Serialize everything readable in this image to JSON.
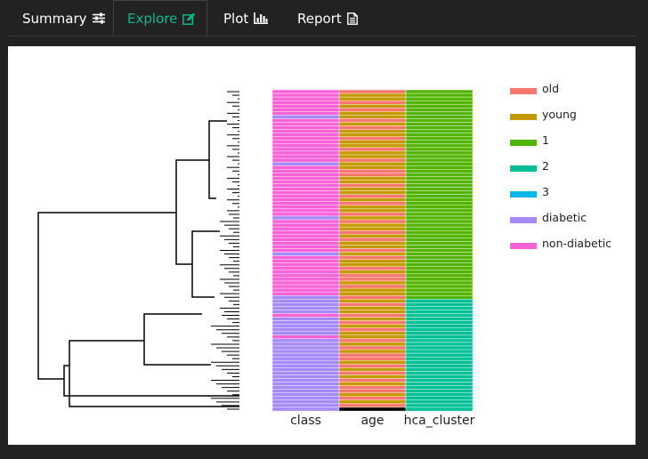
{
  "tabs": [
    {
      "label": "Summary",
      "icon": "sliders-icon",
      "active": false
    },
    {
      "label": "Explore",
      "icon": "edit-icon",
      "active": true
    },
    {
      "label": "Plot",
      "icon": "bar-chart-icon",
      "active": false
    },
    {
      "label": "Report",
      "icon": "document-icon",
      "active": false
    }
  ],
  "colors": {
    "active_tab": "#00bc8c",
    "old": "#f8766d",
    "young": "#c49a00",
    "cluster_1": "#53b400",
    "cluster_2": "#00c094",
    "cluster_3": "#00b6eb",
    "diabetic": "#a58aff",
    "non_diabetic": "#fb61d7"
  },
  "chart_data": {
    "type": "heatmap",
    "columns": [
      "class",
      "age",
      "hca_cluster"
    ],
    "legend": [
      {
        "label": "old",
        "color": "#f8766d"
      },
      {
        "label": "young",
        "color": "#c49a00"
      },
      {
        "label": "1",
        "color": "#53b400"
      },
      {
        "label": "2",
        "color": "#00c094"
      },
      {
        "label": "3",
        "color": "#00b6eb"
      },
      {
        "label": "diabetic",
        "color": "#a58aff"
      },
      {
        "label": "non-diabetic",
        "color": "#fb61d7"
      }
    ],
    "legend_position": "right",
    "dendrogram": "left",
    "class": "NNNNNNNDNNNNNNNNNNNNDNNNNNNNNNNNNNNDNNNNNNNNNDNNNNNNNNNNNDDDDDNDDDDDNDDDDDDDDDDDDDDDDDDDD",
    "age": "OYYOYOYYOYOYYOYYOYYOYYOOYYOYYOYOYYOYOYYOYOYYOYOYYOYOOYOYYOYOYYOYOYOYYOYOYOOYOYOYOYOOYOYO",
    "hca_cluster": "1111111111111111111111111111111111111111111111111111111111222222222222222222222222222222223"
  }
}
